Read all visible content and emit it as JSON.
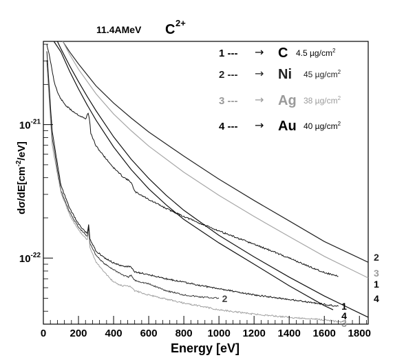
{
  "chart_data": {
    "type": "line",
    "title": {
      "beam": "11.4AMeV",
      "ion": "C",
      "charge": "2+"
    },
    "xlabel": "Energy [eV]",
    "ylabel": {
      "base": "dσ/dE[cm",
      "sup": "-2",
      "tail": "/eV]"
    },
    "xlim": [
      0,
      1850
    ],
    "ylog": true,
    "ylim": [
      3.2e-23,
      4.2e-21
    ],
    "x_ticks": [
      0,
      200,
      400,
      600,
      800,
      1000,
      1200,
      1400,
      1600,
      1800
    ],
    "y_ticks": [
      {
        "value": 1e-21,
        "label": "10",
        "exp": "-21"
      },
      {
        "value": 1e-22,
        "label": "10",
        "exp": "-22"
      }
    ],
    "legend": [
      {
        "num": "1 ---",
        "target": "C",
        "thickness": "4.5 µg/cm",
        "sup": "2",
        "color": "#000000"
      },
      {
        "num": "2 ---",
        "target": "Ni",
        "thickness": "45 µg/cm",
        "sup": "2",
        "color": "#222222"
      },
      {
        "num": "3 ---",
        "target": "Ag",
        "thickness": "38 µg/cm",
        "sup": "2",
        "color": "#9a9a9a"
      },
      {
        "num": "4 ---",
        "target": "Au",
        "thickness": "40 µg/cm",
        "sup": "2",
        "color": "#000000"
      }
    ],
    "theory_series": [
      {
        "name": "1",
        "color": "#111111",
        "x": [
          60,
          100,
          150,
          200,
          250,
          300,
          400,
          500,
          600,
          700,
          800,
          1000,
          1200,
          1400,
          1600,
          1650
        ],
        "y": [
          4.2e-21,
          3.5e-21,
          2.5e-21,
          1.85e-21,
          1.4e-21,
          1.08e-21,
          6.8e-22,
          4.6e-22,
          3.3e-22,
          2.5e-22,
          1.95e-22,
          1.3e-22,
          9e-23,
          6.2e-23,
          4.4e-23,
          4.1e-23
        ]
      },
      {
        "name": "2",
        "color": "#222222",
        "x": [
          110,
          150,
          200,
          300,
          400,
          500,
          600,
          800,
          1000,
          1200,
          1400,
          1600,
          1850
        ],
        "y": [
          4.2e-21,
          3.5e-21,
          2.85e-21,
          1.95e-21,
          1.45e-21,
          1.12e-21,
          8.8e-22,
          5.8e-22,
          3.9e-22,
          2.7e-22,
          1.9e-22,
          1.33e-22,
          9.3e-23
        ]
      },
      {
        "name": "3",
        "color": "#a6a6a6",
        "x": [
          110,
          150,
          200,
          300,
          400,
          500,
          600,
          800,
          1000,
          1200,
          1400,
          1600,
          1850
        ],
        "y": [
          4.2e-21,
          3.35e-21,
          2.6e-21,
          1.7e-21,
          1.2e-21,
          9e-22,
          6.9e-22,
          4.4e-22,
          2.95e-22,
          2.05e-22,
          1.45e-22,
          1.03e-22,
          7.1e-23
        ]
      },
      {
        "name": "4",
        "color": "#111111",
        "x": [
          80,
          100,
          150,
          200,
          250,
          300,
          400,
          500,
          600,
          700,
          800,
          1000,
          1200,
          1400,
          1600,
          1850
        ],
        "y": [
          4.2e-21,
          3.7e-21,
          2.75e-21,
          2.1e-21,
          1.62e-21,
          1.27e-21,
          8.1e-22,
          5.5e-22,
          3.95e-22,
          2.95e-22,
          2.28e-22,
          1.48e-22,
          1.02e-22,
          7.2e-23,
          5.2e-23,
          3.6e-23
        ]
      }
    ],
    "measured_series": [
      {
        "name": "1",
        "color": "#111111",
        "x": [
          20,
          40,
          60,
          80,
          100,
          130,
          160,
          200,
          240,
          255,
          262,
          270,
          300,
          350,
          400,
          450,
          500,
          520,
          560,
          600,
          700,
          800,
          900,
          1000,
          1100,
          1200,
          1300,
          1400,
          1500,
          1600,
          1680
        ],
        "y": [
          4e-21,
          3e-21,
          2.15e-21,
          1.75e-21,
          1.55e-21,
          1.38e-21,
          1.28e-21,
          1.18e-21,
          1.1e-21,
          1.22e-21,
          1.12e-21,
          8.6e-22,
          6.9e-22,
          5.7e-22,
          4.75e-22,
          4.1e-22,
          3.7e-22,
          3.15e-22,
          2.95e-22,
          2.75e-22,
          2.35e-22,
          2.05e-22,
          1.8e-22,
          1.6e-22,
          1.42e-22,
          1.27e-22,
          1.13e-22,
          1e-22,
          8.8e-23,
          7.8e-23,
          7.3e-23
        ]
      },
      {
        "name": "2",
        "color": "#333333",
        "x": [
          20,
          50,
          100,
          150,
          200,
          250,
          258,
          265,
          300,
          350,
          400,
          450,
          480,
          500,
          520,
          600,
          700,
          800,
          900,
          1000
        ],
        "y": [
          3e-21,
          8e-22,
          3.2e-22,
          2.2e-22,
          1.7e-22,
          1.45e-22,
          1.7e-22,
          1.3e-22,
          1.05e-22,
          9e-23,
          8.2e-23,
          7.5e-23,
          7.2e-23,
          7.4e-23,
          6.8e-23,
          6.4e-23,
          5.7e-23,
          5.3e-23,
          5.1e-23,
          5e-23
        ]
      },
      {
        "name": "3",
        "color": "#a0a0a0",
        "x": [
          20,
          50,
          100,
          150,
          200,
          250,
          258,
          265,
          300,
          350,
          400,
          450,
          500,
          520,
          600,
          800,
          1000,
          1200,
          1400,
          1600,
          1700
        ],
        "y": [
          2.8e-21,
          7e-22,
          3.1e-22,
          2.1e-22,
          1.62e-22,
          1.38e-22,
          1.6e-22,
          1.2e-22,
          9.3e-23,
          7.8e-23,
          6.6e-23,
          6.2e-23,
          6.1e-23,
          5.7e-23,
          5.3e-23,
          4.6e-23,
          4.1e-23,
          3.8e-23,
          3.6e-23,
          3.45e-23,
          3.3e-23
        ]
      },
      {
        "name": "4",
        "color": "#111111",
        "x": [
          20,
          50,
          100,
          150,
          200,
          250,
          258,
          265,
          300,
          350,
          400,
          450,
          500,
          520,
          600,
          700,
          800,
          900,
          1000,
          1200,
          1400,
          1600,
          1680
        ],
        "y": [
          3.5e-21,
          9e-22,
          3.5e-22,
          2.35e-22,
          1.8e-22,
          1.52e-22,
          1.8e-22,
          1.38e-22,
          1.13e-22,
          1e-22,
          9.2e-23,
          8.7e-23,
          8.6e-23,
          7.9e-23,
          7.5e-23,
          7e-23,
          6.6e-23,
          6.2e-23,
          5.9e-23,
          5.3e-23,
          4.9e-23,
          4.5e-23,
          4.35e-23
        ]
      }
    ],
    "theory_end_labels": [
      {
        "text": "2",
        "color": "#222222"
      },
      {
        "text": "3",
        "color": "#9a9a9a"
      },
      {
        "text": "1",
        "color": "#000000"
      },
      {
        "text": "4",
        "color": "#000000"
      }
    ],
    "measured_end_labels": [
      {
        "text": "1",
        "x": 1690,
        "y": 4.3e-23,
        "color": "#000000"
      },
      {
        "text": "4",
        "x": 1690,
        "y": 3.65e-23,
        "color": "#000000"
      },
      {
        "text": "3",
        "x": 1690,
        "y": 3.2e-23,
        "color": "#9a9a9a"
      },
      {
        "text": "2",
        "x": 1010,
        "y": 4.9e-23,
        "color": "#444444"
      }
    ]
  }
}
